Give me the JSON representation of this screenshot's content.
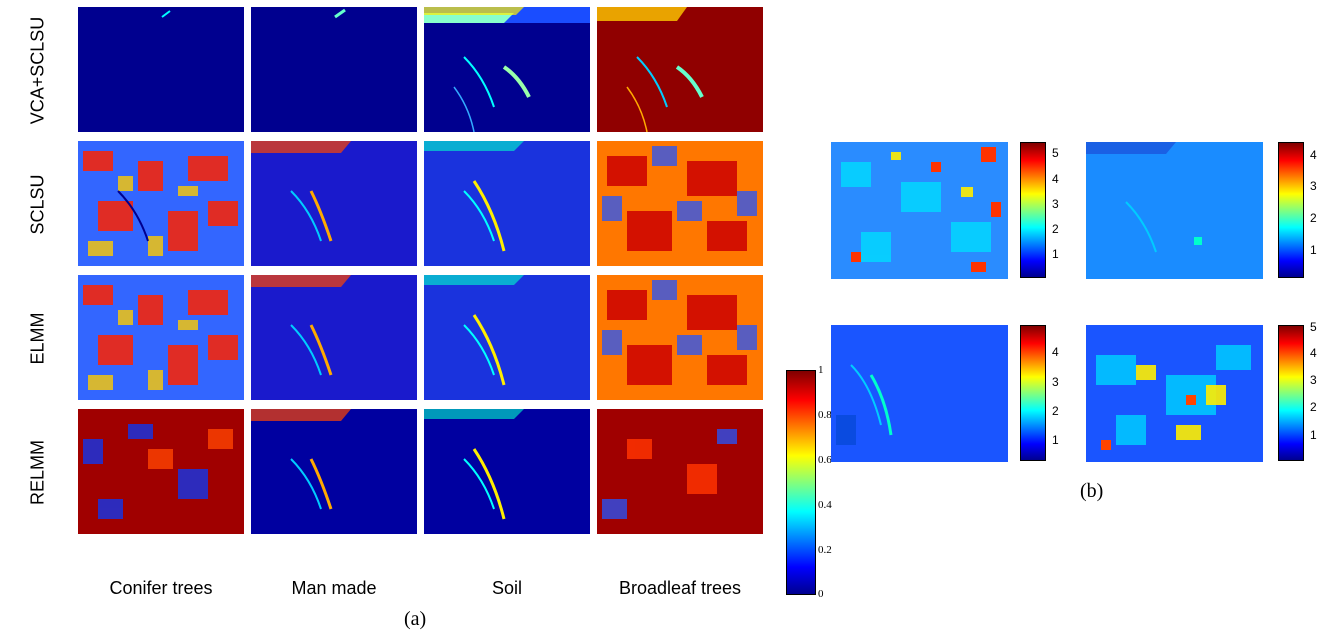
{
  "part_a": {
    "row_labels": [
      "VCA+SCLSU",
      "SCLSU",
      "ELMM",
      "RELMM"
    ],
    "column_labels": [
      "Conifer trees",
      "Man made",
      "Soil",
      "Broadleaf trees"
    ],
    "colorbar_ticks": [
      "1",
      "0.8",
      "0.6",
      "0.4",
      "0.2",
      "0"
    ],
    "caption": "(a)"
  },
  "part_b": {
    "colorbar_ticks": [
      [
        "5",
        "4",
        "3",
        "2",
        "1"
      ],
      [
        "4",
        "3",
        "2",
        "1"
      ],
      [
        "4",
        "3",
        "2",
        "1"
      ],
      [
        "5",
        "4",
        "3",
        "2",
        "1"
      ]
    ],
    "caption": "(b)"
  },
  "colormap": [
    "#00008f",
    "#0000ff",
    "#00ffff",
    "#ffff00",
    "#ff0000",
    "#800000"
  ]
}
